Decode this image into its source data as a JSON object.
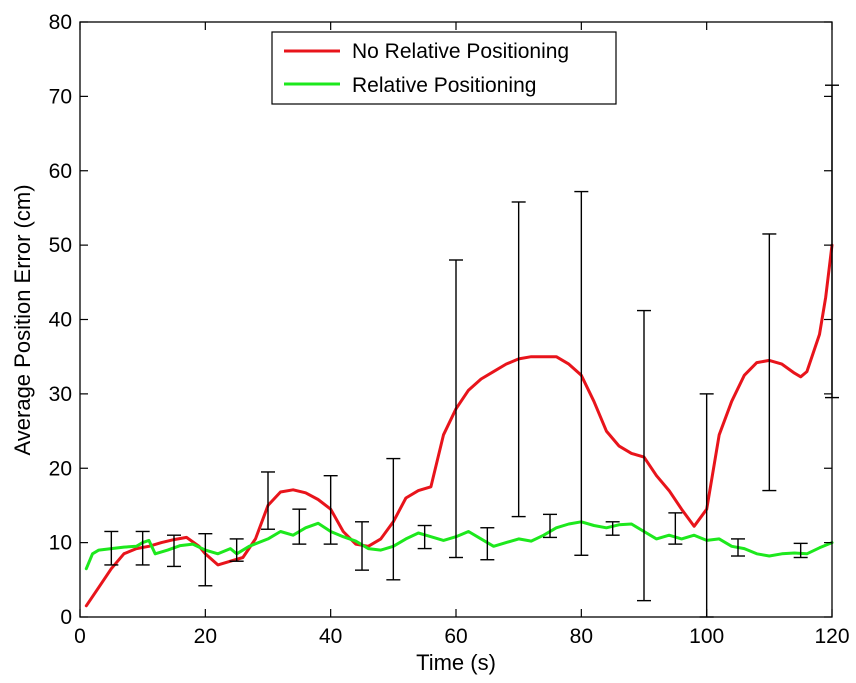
{
  "chart_data": {
    "type": "line",
    "xlabel": "Time (s)",
    "ylabel": "Average Position Error (cm)",
    "xlim": [
      0,
      120
    ],
    "ylim": [
      0,
      80
    ],
    "xticks": [
      0,
      20,
      40,
      60,
      80,
      100,
      120
    ],
    "yticks": [
      0,
      10,
      20,
      30,
      40,
      50,
      60,
      70,
      80
    ],
    "grid": false,
    "legend_position": "top-center",
    "series": [
      {
        "name": "No Relative Positioning",
        "color": "#e8141b",
        "points": [
          [
            1,
            1.5
          ],
          [
            3,
            4
          ],
          [
            5,
            6.5
          ],
          [
            7,
            8.5
          ],
          [
            9,
            9.2
          ],
          [
            11,
            9.5
          ],
          [
            13,
            10
          ],
          [
            15,
            10.4
          ],
          [
            17,
            10.7
          ],
          [
            19,
            9.5
          ],
          [
            20,
            8.5
          ],
          [
            22,
            7
          ],
          [
            24,
            7.5
          ],
          [
            26,
            8
          ],
          [
            28,
            10.5
          ],
          [
            30,
            15
          ],
          [
            32,
            16.8
          ],
          [
            34,
            17.1
          ],
          [
            36,
            16.7
          ],
          [
            38,
            15.8
          ],
          [
            40,
            14.5
          ],
          [
            42,
            11.5
          ],
          [
            44,
            9.8
          ],
          [
            46,
            9.5
          ],
          [
            48,
            10.5
          ],
          [
            50,
            12.8
          ],
          [
            52,
            16
          ],
          [
            54,
            17
          ],
          [
            56,
            17.5
          ],
          [
            58,
            24.5
          ],
          [
            60,
            28
          ],
          [
            62,
            30.5
          ],
          [
            64,
            32
          ],
          [
            66,
            33
          ],
          [
            68,
            34
          ],
          [
            70,
            34.7
          ],
          [
            72,
            35
          ],
          [
            74,
            35
          ],
          [
            76,
            35
          ],
          [
            78,
            34
          ],
          [
            80,
            32.5
          ],
          [
            82,
            29
          ],
          [
            84,
            25
          ],
          [
            86,
            23
          ],
          [
            88,
            22
          ],
          [
            90,
            21.5
          ],
          [
            92,
            19
          ],
          [
            94,
            17
          ],
          [
            96,
            14.5
          ],
          [
            98,
            12.2
          ],
          [
            100,
            14.5
          ],
          [
            102,
            24.5
          ],
          [
            104,
            29
          ],
          [
            106,
            32.5
          ],
          [
            108,
            34.2
          ],
          [
            110,
            34.5
          ],
          [
            112,
            34
          ],
          [
            114,
            32.8
          ],
          [
            115,
            32.3
          ],
          [
            116,
            33
          ],
          [
            118,
            38
          ],
          [
            119,
            43
          ],
          [
            120,
            50
          ]
        ]
      },
      {
        "name": "Relative Positioning",
        "color": "#1de81d",
        "points": [
          [
            1,
            6.5
          ],
          [
            2,
            8.5
          ],
          [
            3,
            9
          ],
          [
            5,
            9.2
          ],
          [
            7,
            9.4
          ],
          [
            9,
            9.5
          ],
          [
            10,
            10
          ],
          [
            11,
            10.3
          ],
          [
            12,
            8.5
          ],
          [
            14,
            9
          ],
          [
            16,
            9.6
          ],
          [
            18,
            9.8
          ],
          [
            20,
            9
          ],
          [
            22,
            8.5
          ],
          [
            24,
            9.2
          ],
          [
            25,
            8.5
          ],
          [
            27,
            9.5
          ],
          [
            30,
            10.5
          ],
          [
            32,
            11.5
          ],
          [
            34,
            11
          ],
          [
            36,
            12
          ],
          [
            38,
            12.6
          ],
          [
            40,
            11.5
          ],
          [
            42,
            10.8
          ],
          [
            44,
            10.2
          ],
          [
            46,
            9.2
          ],
          [
            48,
            9
          ],
          [
            50,
            9.5
          ],
          [
            52,
            10.5
          ],
          [
            54,
            11.3
          ],
          [
            56,
            10.8
          ],
          [
            58,
            10.3
          ],
          [
            60,
            10.8
          ],
          [
            62,
            11.5
          ],
          [
            64,
            10.5
          ],
          [
            66,
            9.5
          ],
          [
            68,
            10
          ],
          [
            70,
            10.5
          ],
          [
            72,
            10.2
          ],
          [
            74,
            11
          ],
          [
            76,
            12
          ],
          [
            78,
            12.5
          ],
          [
            80,
            12.8
          ],
          [
            82,
            12.3
          ],
          [
            84,
            12
          ],
          [
            86,
            12.4
          ],
          [
            88,
            12.5
          ],
          [
            90,
            11.5
          ],
          [
            92,
            10.5
          ],
          [
            94,
            11
          ],
          [
            96,
            10.5
          ],
          [
            98,
            11
          ],
          [
            100,
            10.3
          ],
          [
            102,
            10.5
          ],
          [
            104,
            9.5
          ],
          [
            106,
            9.2
          ],
          [
            108,
            8.5
          ],
          [
            110,
            8.2
          ],
          [
            112,
            8.5
          ],
          [
            114,
            8.6
          ],
          [
            116,
            8.5
          ],
          [
            118,
            9.3
          ],
          [
            120,
            10
          ]
        ]
      }
    ],
    "error_bars": {
      "color": "#000000",
      "points": [
        {
          "x": 5,
          "low": 7,
          "high": 11.5
        },
        {
          "x": 10,
          "low": 7,
          "high": 11.5
        },
        {
          "x": 15,
          "low": 6.8,
          "high": 11
        },
        {
          "x": 20,
          "low": 4.2,
          "high": 11.2
        },
        {
          "x": 25,
          "low": 7.5,
          "high": 10.5
        },
        {
          "x": 30,
          "low": 11.8,
          "high": 19.5
        },
        {
          "x": 35,
          "low": 9.8,
          "high": 14.5
        },
        {
          "x": 40,
          "low": 9.8,
          "high": 19
        },
        {
          "x": 45,
          "low": 6.3,
          "high": 12.8
        },
        {
          "x": 50,
          "low": 5,
          "high": 21.3
        },
        {
          "x": 55,
          "low": 9.2,
          "high": 12.3
        },
        {
          "x": 60,
          "low": 8,
          "high": 48
        },
        {
          "x": 65,
          "low": 7.7,
          "high": 12
        },
        {
          "x": 70,
          "low": 13.5,
          "high": 55.8
        },
        {
          "x": 75,
          "low": 10.7,
          "high": 13.8
        },
        {
          "x": 80,
          "low": 8.3,
          "high": 57.2
        },
        {
          "x": 85,
          "low": 11,
          "high": 12.8
        },
        {
          "x": 90,
          "low": 2.2,
          "high": 41.2
        },
        {
          "x": 95,
          "low": 9.8,
          "high": 14
        },
        {
          "x": 100,
          "low": 0,
          "high": 30
        },
        {
          "x": 105,
          "low": 8.2,
          "high": 10.5
        },
        {
          "x": 110,
          "low": 17,
          "high": 51.5
        },
        {
          "x": 115,
          "low": 8,
          "high": 9.9
        },
        {
          "x": 120,
          "low": 29.5,
          "high": 71.5
        }
      ]
    }
  }
}
